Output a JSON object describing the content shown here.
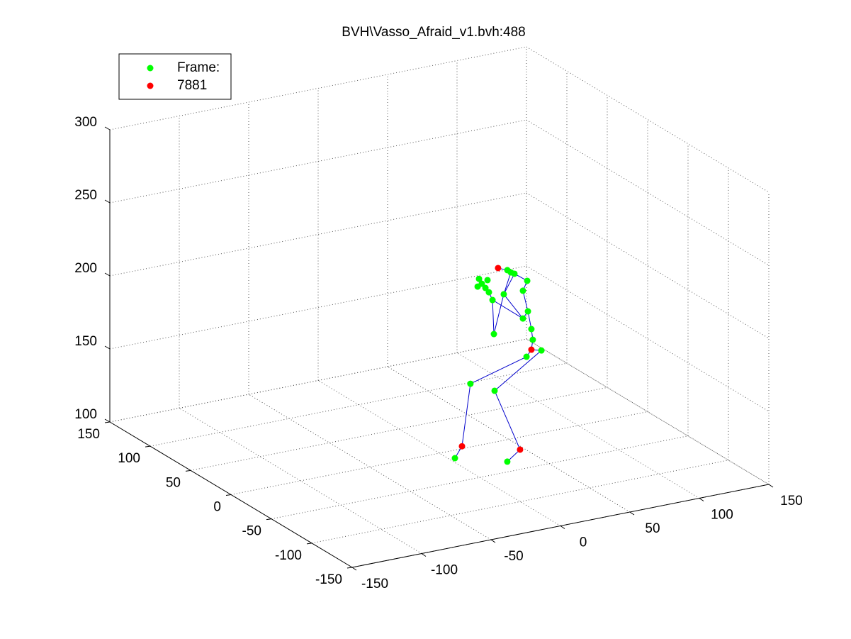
{
  "chart_data": {
    "type": "scatter3d",
    "title": "BVH\\Vasso_Afraid_v1.bvh:488",
    "xlim": [
      -150,
      150
    ],
    "ylim": [
      -150,
      150
    ],
    "zlim": [
      100,
      300
    ],
    "xticks": [
      -150,
      -100,
      -50,
      0,
      50,
      100,
      150
    ],
    "yticks": [
      -150,
      -100,
      -50,
      0,
      50,
      100,
      150
    ],
    "zticks": [
      100,
      150,
      200,
      250,
      300
    ],
    "grid": true,
    "legend": "northwest",
    "line_color": "#0000cc",
    "series": [
      {
        "name": "Frame:",
        "color": "#00ff00",
        "x": [
          2.5,
          22.4,
          62.8,
          73.5,
          39.8,
          31.5,
          67.3,
          66.3,
          63.8,
          60.2,
          60.2,
          63.3,
          54.1,
          49.0,
          51.5,
          46.4,
          39.3,
          38.3,
          30.6,
          33.2,
          35.7,
          28.6,
          34.7,
          27.6
        ],
        "y": [
          -15,
          0,
          0,
          0,
          0,
          -30,
          0,
          0,
          0,
          0,
          0,
          0,
          0,
          0,
          0,
          0,
          0,
          0,
          0,
          0,
          0,
          0,
          0,
          0
        ],
        "z": [
          101.1,
          143.3,
          154.1,
          156.4,
          135.2,
          98.2,
          164.9,
          172.4,
          185.0,
          180.8,
          199.8,
          206.0,
          212.6,
          216.0,
          214.0,
          200.0,
          174.1,
          197.6,
          210.2,
          206.8,
          203.4,
          213.9,
          211.9,
          208.8
        ]
      },
      {
        "name": "7881",
        "color": "#ff0000",
        "x": [
          7.6,
          40.7,
          66.3,
          42.3
        ],
        "y": [
          -15,
          -30,
          0,
          0
        ],
        "z": [
          108.3,
          104.7,
          158.3,
          218.7
        ]
      }
    ],
    "edges": [
      [
        [
          0,
          0
        ],
        [
          1,
          0
        ]
      ],
      [
        [
          1,
          0
        ],
        [
          0,
          1
        ]
      ],
      [
        [
          0,
          1
        ],
        [
          0,
          2
        ]
      ],
      [
        [
          0,
          2
        ],
        [
          1,
          2
        ]
      ],
      [
        [
          1,
          2
        ],
        [
          0,
          3
        ]
      ],
      [
        [
          0,
          3
        ],
        [
          0,
          4
        ]
      ],
      [
        [
          0,
          4
        ],
        [
          1,
          1
        ]
      ],
      [
        [
          1,
          1
        ],
        [
          0,
          5
        ]
      ],
      [
        [
          1,
          2
        ],
        [
          0,
          6
        ]
      ],
      [
        [
          0,
          6
        ],
        [
          0,
          7
        ]
      ],
      [
        [
          0,
          7
        ],
        [
          0,
          8
        ]
      ],
      [
        [
          0,
          8
        ],
        [
          0,
          10
        ]
      ],
      [
        [
          0,
          10
        ],
        [
          0,
          11
        ]
      ],
      [
        [
          0,
          11
        ],
        [
          0,
          12
        ]
      ],
      [
        [
          0,
          12
        ],
        [
          0,
          13
        ]
      ],
      [
        [
          0,
          13
        ],
        [
          1,
          3
        ]
      ],
      [
        [
          0,
          8
        ],
        [
          0,
          9
        ]
      ],
      [
        [
          0,
          9
        ],
        [
          0,
          15
        ]
      ],
      [
        [
          0,
          15
        ],
        [
          0,
          14
        ]
      ],
      [
        [
          0,
          9
        ],
        [
          0,
          17
        ]
      ],
      [
        [
          0,
          16
        ],
        [
          0,
          17
        ]
      ],
      [
        [
          0,
          16
        ],
        [
          0,
          15
        ]
      ],
      [
        [
          0,
          17
        ],
        [
          0,
          20
        ]
      ],
      [
        [
          0,
          15
        ],
        [
          0,
          12
        ]
      ]
    ]
  }
}
